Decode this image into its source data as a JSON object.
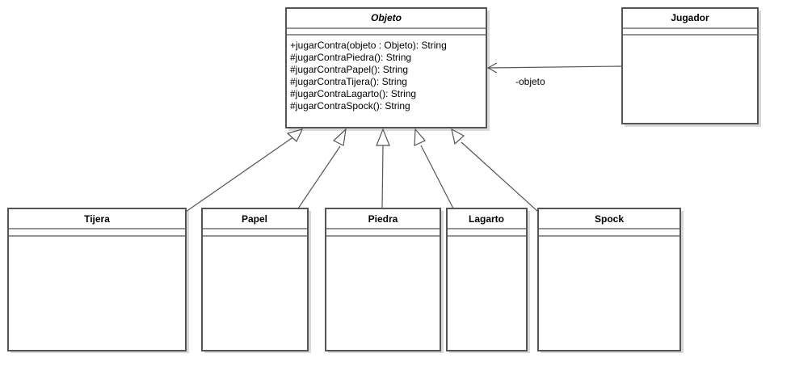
{
  "classes": {
    "objeto": {
      "name": "Objeto",
      "methods": [
        "+jugarContra(objeto : Objeto): String",
        "#jugarContraPiedra(): String",
        "#jugarContraPapel(): String",
        "#jugarContraTijera(): String",
        "#jugarContraLagarto(): String",
        "#jugarContraSpock(): String"
      ]
    },
    "jugador": {
      "name": "Jugador"
    },
    "tijera": {
      "name": "Tijera"
    },
    "papel": {
      "name": "Papel"
    },
    "piedra": {
      "name": "Piedra"
    },
    "lagarto": {
      "name": "Lagarto"
    },
    "spock": {
      "name": "Spock"
    }
  },
  "association": {
    "label": "-objeto"
  },
  "colors": {
    "stroke": "#555555",
    "shadow": "#d9d9d9",
    "fill": "#ffffff"
  }
}
